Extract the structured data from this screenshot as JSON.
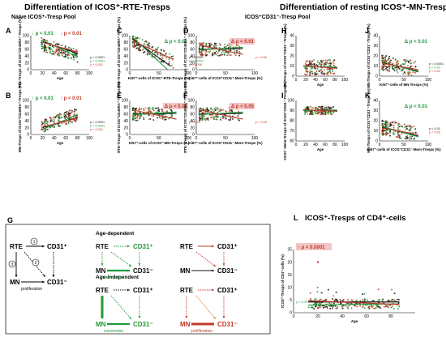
{
  "titles": {
    "left": "Differentiation of ICOS⁺-RTE-Tresps",
    "right": "Differentiation of resting ICOS⁺-MN-Tresps",
    "naive_pool": "Naive ICOS⁺-Tresp Pool",
    "cd31_pool": "ICOS⁺CD31⁻-Tresp Pool"
  },
  "colors": {
    "green": "#1f9a3a",
    "red": "#c0392b",
    "black": "#111111",
    "orange": "#e07b2c",
    "sig_bg": "#f4c6c6"
  },
  "panels": [
    {
      "id": "A",
      "label": "A",
      "xlabel": "Age",
      "ylabel": "RTE-Tresps of ICOS⁺CD45RA⁺-Tresps (%)",
      "xlim": [
        0,
        100
      ],
      "ylim": [
        0,
        100
      ],
      "xticks": [
        "0",
        "20",
        "40",
        "60",
        "80",
        "100"
      ],
      "yticks": [
        "0",
        "20",
        "40",
        "60",
        "80",
        "100"
      ],
      "trend": "down",
      "scatter": "age",
      "sig": [
        {
          "text": "↓ p < 0.01",
          "color": "green",
          "pos": "tl"
        },
        {
          "text": "↓ p < 0.01",
          "color": "red",
          "pos": "tc"
        }
      ],
      "pvalues": [
        {
          "text": "p < 0.0001",
          "color": "black"
        },
        {
          "text": "p < 0.0001",
          "color": "green"
        },
        {
          "text": "p < 0.001",
          "color": "red"
        }
      ]
    },
    {
      "id": "B",
      "label": "B",
      "xlabel": "Age",
      "ylabel": "MN-Tresps of ICOS⁺CD45RA⁺-Tresps (%)",
      "xlim": [
        0,
        100
      ],
      "ylim": [
        0,
        100
      ],
      "xticks": [
        "0",
        "20",
        "40",
        "60",
        "80",
        "100"
      ],
      "yticks": [
        "0",
        "20",
        "40",
        "60",
        "80",
        "100"
      ],
      "trend": "up",
      "scatter": "age",
      "sig": [
        {
          "text": "↑ p < 0.01",
          "color": "green",
          "pos": "tl"
        },
        {
          "text": "↑ p < 0.01",
          "color": "red",
          "pos": "tc"
        }
      ],
      "pvalues": [
        {
          "text": "p < 0.0001",
          "color": "black"
        },
        {
          "text": "p < 0.0001",
          "color": "green"
        },
        {
          "text": "p < 0.001",
          "color": "red"
        }
      ]
    },
    {
      "id": "C",
      "label": "C",
      "xlabel": "Ki67⁺-cells of ICOS⁺-RTE-Tresps (%)",
      "ylabel": "RTE-Tresps of ICOS⁺CD45RA⁺-Tresps (%)",
      "xlim": [
        0,
        100
      ],
      "ylim": [
        0,
        100
      ],
      "xticks": [
        "0",
        "50",
        "100"
      ],
      "yticks": [
        "0",
        "20",
        "40",
        "60",
        "80",
        "100"
      ],
      "trend": "steep",
      "scatter": "ki",
      "sig": [
        {
          "text": "Δ p < 0.01",
          "color": "green",
          "pos": "tr"
        }
      ],
      "pvalues": [
        {
          "text": "p < 0.0001",
          "color": "black"
        },
        {
          "text": "p < 0.0001",
          "color": "green"
        },
        {
          "text": "p < 0.006",
          "color": "red"
        }
      ]
    },
    {
      "id": "D",
      "label": "D",
      "xlabel": "Ki67⁺-cells of ICOS⁺CD31⁺-Mem-Tresps (%)",
      "ylabel": "RTE-Tresps of ICOS⁺CD45RA⁺-Tresps (%)",
      "xlim": [
        0,
        100
      ],
      "ylim": [
        0,
        100
      ],
      "xticks": [
        "0",
        "50",
        "100"
      ],
      "yticks": [
        "0",
        "20",
        "40",
        "60",
        "80",
        "100"
      ],
      "trend": "flat",
      "scatter": "ki",
      "sig": [
        {
          "text": "Δ p < 0.01",
          "color": "red",
          "pos": "tr",
          "boxed": true
        }
      ],
      "pvalues": [
        {
          "text": "p < 0.05",
          "color": "red"
        }
      ]
    },
    {
      "id": "E",
      "label": "E",
      "xlabel": "Ki67⁺-cells of ICOS⁺-MN-Tresps (%)",
      "ylabel": "RTE-Tresps of ICOS⁺CD45RA⁺-Tresps (%)",
      "xlim": [
        0,
        100
      ],
      "ylim": [
        0,
        100
      ],
      "xticks": [
        "0",
        "50",
        "100"
      ],
      "yticks": [
        "0",
        "20",
        "40",
        "60",
        "80",
        "100"
      ],
      "trend": "flat",
      "scatter": "ki",
      "sig": [
        {
          "text": "Δ p < 0.05",
          "color": "red",
          "pos": "tr",
          "boxed": true
        }
      ],
      "pvalues": [
        {
          "text": "p < 0.05",
          "color": "red"
        }
      ]
    },
    {
      "id": "F",
      "label": "F",
      "xlabel": "Ki67⁺-cells of ICOS⁺CD31⁻-Mem-Tresps (%)",
      "ylabel": "RTE-Tresps of ICOS⁺CD45RA⁺-Tresps (%)",
      "xlim": [
        0,
        100
      ],
      "ylim": [
        0,
        100
      ],
      "xticks": [
        "0",
        "50",
        "100"
      ],
      "yticks": [
        "0",
        "20",
        "40",
        "60",
        "80",
        "100"
      ],
      "trend": "flat",
      "scatter": "ki",
      "sig": [
        {
          "text": "Δ p < 0.05",
          "color": "red",
          "pos": "tr",
          "boxed": true
        }
      ],
      "pvalues": [
        {
          "text": "p < 0.05",
          "color": "red"
        }
      ]
    },
    {
      "id": "H",
      "label": "H",
      "xlabel": "Age",
      "ylabel": "MN-Tresps of ICOS⁺CD31⁻-Tresps (%)",
      "xlim": [
        0,
        100
      ],
      "ylim": [
        0,
        40
      ],
      "xticks": [
        "0",
        "20",
        "40",
        "60",
        "80",
        "100"
      ],
      "yticks": [
        "0",
        "10",
        "20",
        "30",
        "40"
      ],
      "trend": "flatlow",
      "scatter": "age",
      "sig": [],
      "pvalues": []
    },
    {
      "id": "J",
      "label": "J",
      "xlabel": "Ki67⁺-cells of MN-Tresps (%)",
      "ylabel": "MN-Tresps of ICOS⁺CD31⁻-Tresps (%)",
      "xlim": [
        0,
        100
      ],
      "ylim": [
        0,
        40
      ],
      "xticks": [
        "0",
        "50",
        "100"
      ],
      "yticks": [
        "0",
        "10",
        "20",
        "30",
        "40"
      ],
      "trend": "downlow",
      "scatter": "ki",
      "sig": [
        {
          "text": "Δ p < 0.01",
          "color": "green",
          "pos": "tr"
        }
      ],
      "pvalues": [
        {
          "text": "p < 0.0001",
          "color": "black"
        },
        {
          "text": "p < 0.01",
          "color": "green"
        },
        {
          "text": "p < 0.01",
          "color": "red"
        }
      ]
    },
    {
      "id": "I",
      "label": "I",
      "xlabel": "Age",
      "ylabel": "CD31⁻-Mem-Tresps of ICOS⁺CD31⁻-Tresps (%)",
      "xlim": [
        0,
        100
      ],
      "ylim": [
        60,
        100
      ],
      "xticks": [
        "0",
        "20",
        "40",
        "60",
        "80",
        "100"
      ],
      "yticks": [
        "60",
        "70",
        "80",
        "90",
        "100"
      ],
      "trend": "flathigh",
      "scatter": "age",
      "sig": [],
      "pvalues": []
    },
    {
      "id": "K",
      "label": "K",
      "xlabel": "Ki67⁺-cells of ICOS⁺CD31⁻-Mem-Tresps (%)",
      "ylabel": "MN-Tresps of ICOS⁺CD31⁻-Tresps (%)",
      "xlim": [
        0,
        100
      ],
      "ylim": [
        0,
        40
      ],
      "xticks": [
        "0",
        "50",
        "100"
      ],
      "yticks": [
        "0",
        "10",
        "20",
        "30",
        "40"
      ],
      "trend": "downlow",
      "scatter": "ki",
      "sig": [
        {
          "text": "Δ p < 0.01",
          "color": "green",
          "pos": "tr"
        }
      ],
      "pvalues": [
        {
          "text": "p < 0.01",
          "color": "black"
        },
        {
          "text": "p < 0.05",
          "color": "red"
        }
      ]
    }
  ],
  "panel_L": {
    "label": "L",
    "title": "ICOS⁺-Tresps of CD4⁺-cells",
    "xlabel": "Age",
    "ylabel": "ICOS⁺-Tresps of CD4⁺-cells (%)",
    "xlim": [
      0,
      100
    ],
    "ylim": [
      0,
      25
    ],
    "xticks": [
      "0",
      "20",
      "40",
      "60",
      "80"
    ],
    "yticks": [
      "0",
      "5",
      "10",
      "15",
      "20",
      "25"
    ],
    "sig": "↑ p < 0.0001",
    "pvalue": "p < 0.05"
  },
  "diagram": {
    "label": "G",
    "age_dependent": "Age-dependent",
    "age_independent": "Age-independent",
    "rte": "RTE",
    "cd31p": "CD31⁺",
    "cd31n": "CD31⁻",
    "mn": "MN",
    "proliferation": "proliferation",
    "conversion": "conversion",
    "n1": "1",
    "n2": "2",
    "n3": "3"
  }
}
